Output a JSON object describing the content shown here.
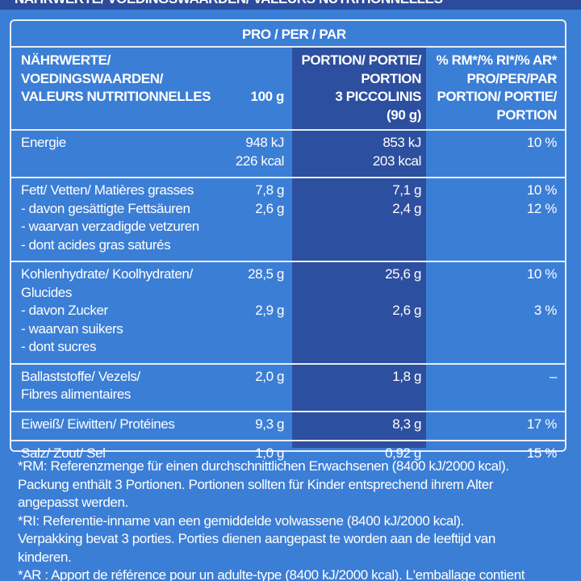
{
  "header": {
    "title": "NÄHRWERTE/ VOEDINGSWAARDEN/ VALEURS NUTRITIONNELLES"
  },
  "table": {
    "column_group": "PRO / PER / PAR",
    "headers": [
      [
        "NÄHRWERTE/",
        "VOEDINGSWAARDEN/",
        "VALEURS NUTRITIONNELLES"
      ],
      [
        "100 g"
      ],
      [
        "PORTION/ PORTIE/",
        "PORTION",
        "3 PICCOLINIS",
        "(90 g)"
      ],
      [
        "% RM*/% RI*/% AR*",
        "PRO/PER/PAR",
        "PORTION/ PORTIE/",
        "PORTION"
      ]
    ],
    "sections": [
      [
        {
          "label": [
            "Energie"
          ],
          "per100": [
            "948 kJ",
            "226 kcal"
          ],
          "portion": [
            "853 kJ",
            "203 kcal"
          ],
          "ri": [
            "10 %"
          ]
        }
      ],
      [
        {
          "label": [
            "Fett/ Vetten/ Matières grasses"
          ],
          "per100": [
            "7,8 g"
          ],
          "portion": [
            "7,1 g"
          ],
          "ri": [
            "10 %"
          ]
        },
        {
          "label": [
            "- davon gesättigte Fettsäuren",
            "- waarvan verzadigde vetzuren",
            "- dont acides gras saturés"
          ],
          "per100": [
            "2,6 g"
          ],
          "portion": [
            "2,4 g"
          ],
          "ri": [
            "12 %"
          ]
        }
      ],
      [
        {
          "label": [
            "Kohlenhydrate/ Koolhydraten/",
            "Glucides"
          ],
          "per100": [
            "28,5 g"
          ],
          "portion": [
            "25,6 g"
          ],
          "ri": [
            "10 %"
          ]
        },
        {
          "label": [
            "- davon Zucker",
            "- waarvan suikers",
            "- dont sucres"
          ],
          "per100": [
            "2,9 g"
          ],
          "portion": [
            "2,6 g"
          ],
          "ri": [
            "3 %"
          ]
        }
      ],
      [
        {
          "label": [
            "Ballaststoffe/ Vezels/",
            "Fibres alimentaires"
          ],
          "per100": [
            "2,0 g"
          ],
          "portion": [
            "1,8 g"
          ],
          "ri": [
            "–"
          ]
        }
      ],
      [
        {
          "label": [
            "Eiweiß/ Eiwitten/ Protéines"
          ],
          "per100": [
            "9,3 g"
          ],
          "portion": [
            "8,3 g"
          ],
          "ri": [
            "17 %"
          ]
        }
      ],
      [
        {
          "label": [
            "Salz/ Zout/ Sel"
          ],
          "per100": [
            "1,0 g"
          ],
          "portion": [
            "0,92 g"
          ],
          "ri": [
            "15 %"
          ]
        }
      ]
    ]
  },
  "footnotes": [
    "*RM: Referenzmenge für einen durchschnittlichen Erwachsenen (8400 kJ/2000 kcal).",
    "Packung enthält 3 Portionen. Portionen sollten für Kinder entsprechend ihrem Alter",
    "angepasst werden.",
    "*RI: Referentie-inname van een gemiddelde volwassene (8400 kJ/2000 kcal).",
    "Verpakking bevat 3 porties. Porties dienen aangepast te worden aan de leeftijd van",
    "kinderen.",
    "*AR : Apport de référence pour un adulte-type (8400 kJ/2000 kcal). L'emballage contient"
  ]
}
